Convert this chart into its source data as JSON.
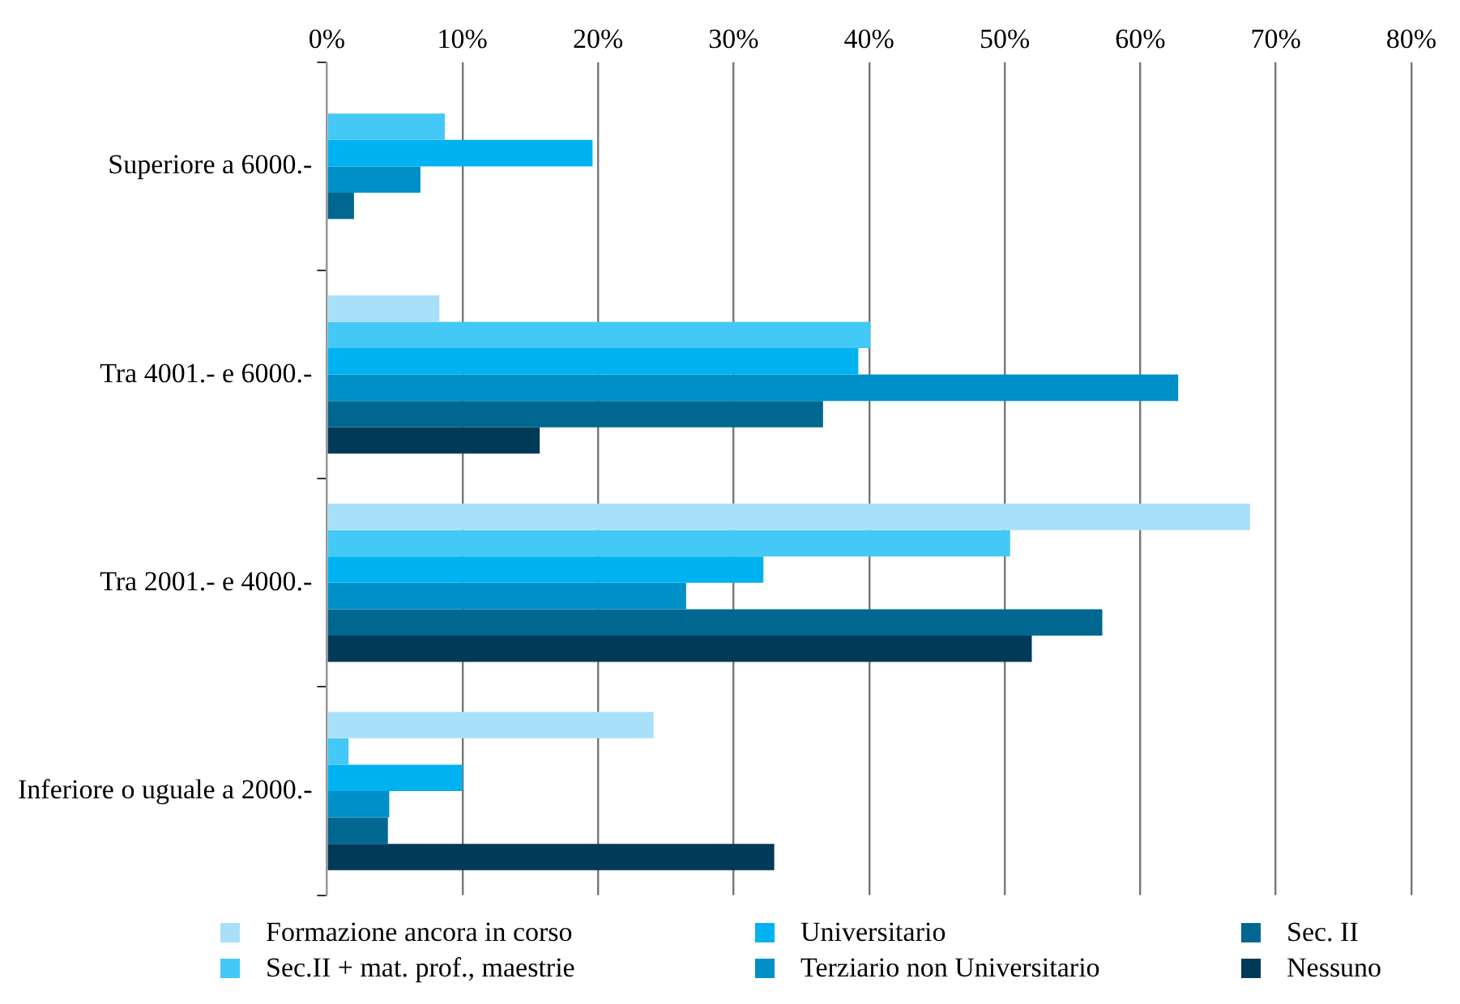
{
  "chart_data": {
    "type": "bar",
    "orientation": "horizontal",
    "categories": [
      "Superiore a 6000.-",
      "Tra 4001.- e 6000.-",
      "Tra 2001.- e 4000.-",
      "Inferiore o uguale a 2000.-"
    ],
    "series": [
      {
        "name": "Formazione ancora in corso",
        "color": "#a9e0f9",
        "values": [
          null,
          8.3,
          68.1,
          24.1
        ]
      },
      {
        "name": "Sec.II  + mat. prof., maestrie",
        "color": "#44c8f5",
        "values": [
          8.7,
          40.1,
          50.4,
          1.6
        ]
      },
      {
        "name": "Universitario",
        "color": "#00b2ef",
        "values": [
          19.6,
          39.2,
          32.2,
          10.0
        ]
      },
      {
        "name": "Terziario non Universitario",
        "color": "#0090c8",
        "values": [
          6.9,
          62.8,
          26.5,
          4.6
        ]
      },
      {
        "name": "Sec. II",
        "color": "#006791",
        "values": [
          2.0,
          36.6,
          57.2,
          4.5
        ]
      },
      {
        "name": "Nessuno",
        "color": "#003a58",
        "values": [
          null,
          15.7,
          52.0,
          33.0
        ]
      }
    ],
    "xlim": [
      0,
      80
    ],
    "xticks": [
      {
        "value": 0,
        "label": "0%"
      },
      {
        "value": 10,
        "label": "10%"
      },
      {
        "value": 20,
        "label": "20%"
      },
      {
        "value": 30,
        "label": "30%"
      },
      {
        "value": 40,
        "label": "40%"
      },
      {
        "value": 50,
        "label": "50%"
      },
      {
        "value": 60,
        "label": "60%"
      },
      {
        "value": 70,
        "label": "70%"
      },
      {
        "value": 80,
        "label": "80%"
      }
    ],
    "grid": "x",
    "legend": "bottom"
  }
}
